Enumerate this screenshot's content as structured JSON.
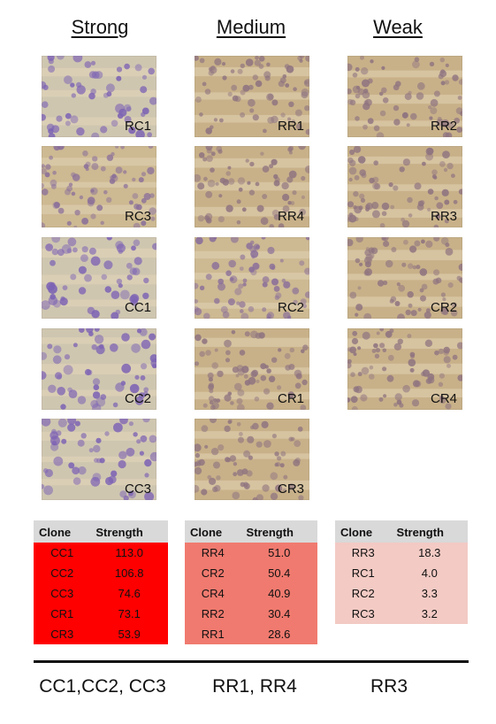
{
  "headers": {
    "strong": "Strong",
    "medium": "Medium",
    "weak": "Weak"
  },
  "tiles": {
    "strong": [
      {
        "label": "RC1",
        "tone": "blue"
      },
      {
        "label": "RC3",
        "tone": "mixed"
      },
      {
        "label": "CC1",
        "tone": "blue"
      },
      {
        "label": "CC2",
        "tone": "blue"
      },
      {
        "label": "CC3",
        "tone": "blue"
      }
    ],
    "medium": [
      {
        "label": "RR1",
        "tone": "tan"
      },
      {
        "label": "RR4",
        "tone": "tan"
      },
      {
        "label": "RC2",
        "tone": "mixed"
      },
      {
        "label": "CR1",
        "tone": "tan"
      },
      {
        "label": "CR3",
        "tone": "tan"
      }
    ],
    "weak": [
      {
        "label": "RR2",
        "tone": "tan"
      },
      {
        "label": "RR3",
        "tone": "tan"
      },
      {
        "label": "CR2",
        "tone": "tan"
      },
      {
        "label": "CR4",
        "tone": "tan"
      }
    ]
  },
  "tables": {
    "strong": {
      "col_clone": "Clone",
      "col_strength": "Strength",
      "rows": [
        {
          "clone": "CC1",
          "strength": "113.0"
        },
        {
          "clone": "CC2",
          "strength": "106.8"
        },
        {
          "clone": "CC3",
          "strength": "74.6"
        },
        {
          "clone": "CR1",
          "strength": "73.1"
        },
        {
          "clone": "CR3",
          "strength": "53.9"
        }
      ]
    },
    "medium": {
      "col_clone": "Clone",
      "col_strength": "Strength",
      "rows": [
        {
          "clone": "RR4",
          "strength": "51.0"
        },
        {
          "clone": "CR2",
          "strength": "50.4"
        },
        {
          "clone": "CR4",
          "strength": "40.9"
        },
        {
          "clone": "RR2",
          "strength": "30.4"
        },
        {
          "clone": "RR1",
          "strength": "28.6"
        }
      ]
    },
    "weak": {
      "col_clone": "Clone",
      "col_strength": "Strength",
      "rows": [
        {
          "clone": "RR3",
          "strength": "18.3"
        },
        {
          "clone": "RC1",
          "strength": "4.0"
        },
        {
          "clone": "RC2",
          "strength": "3.3"
        },
        {
          "clone": "RC3",
          "strength": "3.2"
        }
      ]
    }
  },
  "summary": {
    "strong": "CC1,CC2, CC3",
    "medium": "RR1, RR4",
    "weak": "RR3"
  },
  "colors": {
    "strong": "#ff0000",
    "medium": "#f07a6f",
    "weak": "#f3cac4",
    "header_gray": "#d9d9d9"
  }
}
